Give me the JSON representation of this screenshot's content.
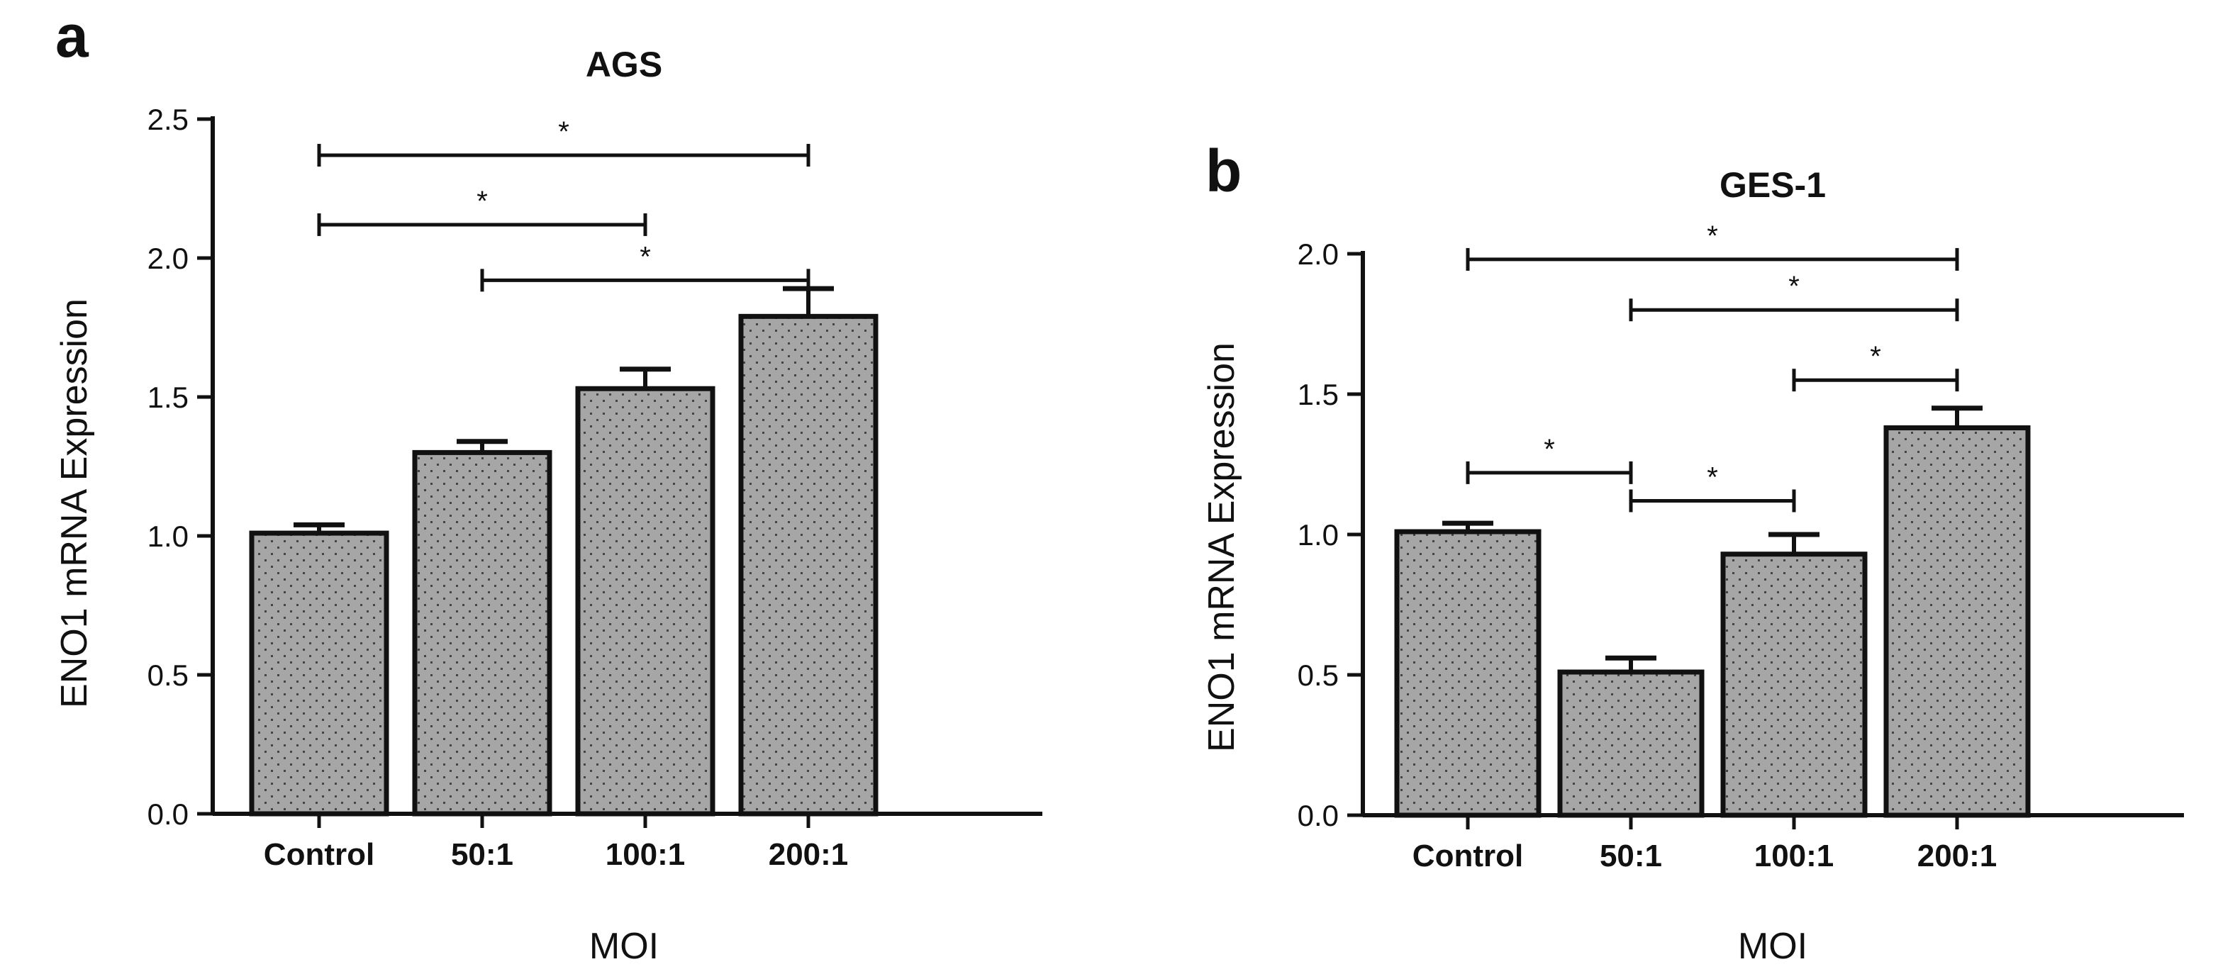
{
  "chart_data": [
    {
      "panel": "a",
      "type": "bar",
      "title": "AGS",
      "xlabel": "MOI",
      "ylabel": "ENO1 mRNA Expression",
      "categories": [
        "Control",
        "50:1",
        "100:1",
        "200:1"
      ],
      "values": [
        1.01,
        1.3,
        1.53,
        1.79
      ],
      "errors": [
        0.03,
        0.04,
        0.07,
        0.1
      ],
      "ylim": [
        0,
        2.5
      ],
      "yticks": [
        "0.0",
        "0.5",
        "1.0",
        "1.5",
        "2.0",
        "2.5"
      ],
      "bar_color": "#a6a6a6",
      "significance": [
        {
          "from": 0,
          "to": 3,
          "y": 2.37,
          "label": "*"
        },
        {
          "from": 0,
          "to": 2,
          "y": 2.12,
          "label": "*"
        },
        {
          "from": 1,
          "to": 3,
          "y": 1.92,
          "label": "*"
        }
      ]
    },
    {
      "panel": "b",
      "type": "bar",
      "title": "GES-1",
      "xlabel": "MOI",
      "ylabel": "ENO1 mRNA Expression",
      "categories": [
        "Control",
        "50:1",
        "100:1",
        "200:1"
      ],
      "values": [
        1.01,
        0.51,
        0.93,
        1.38
      ],
      "errors": [
        0.03,
        0.05,
        0.07,
        0.07
      ],
      "ylim": [
        0,
        2.0
      ],
      "yticks": [
        "0.0",
        "0.5",
        "1.0",
        "1.5",
        "2.0"
      ],
      "bar_color": "#a6a6a6",
      "significance": [
        {
          "from": 0,
          "to": 3,
          "y": 1.98,
          "label": "*"
        },
        {
          "from": 1,
          "to": 3,
          "y": 1.8,
          "label": "*"
        },
        {
          "from": 2,
          "to": 3,
          "y": 1.55,
          "label": "*"
        },
        {
          "from": 0,
          "to": 1,
          "y": 1.22,
          "label": "*"
        },
        {
          "from": 1,
          "to": 2,
          "y": 1.12,
          "label": "*"
        }
      ]
    }
  ]
}
